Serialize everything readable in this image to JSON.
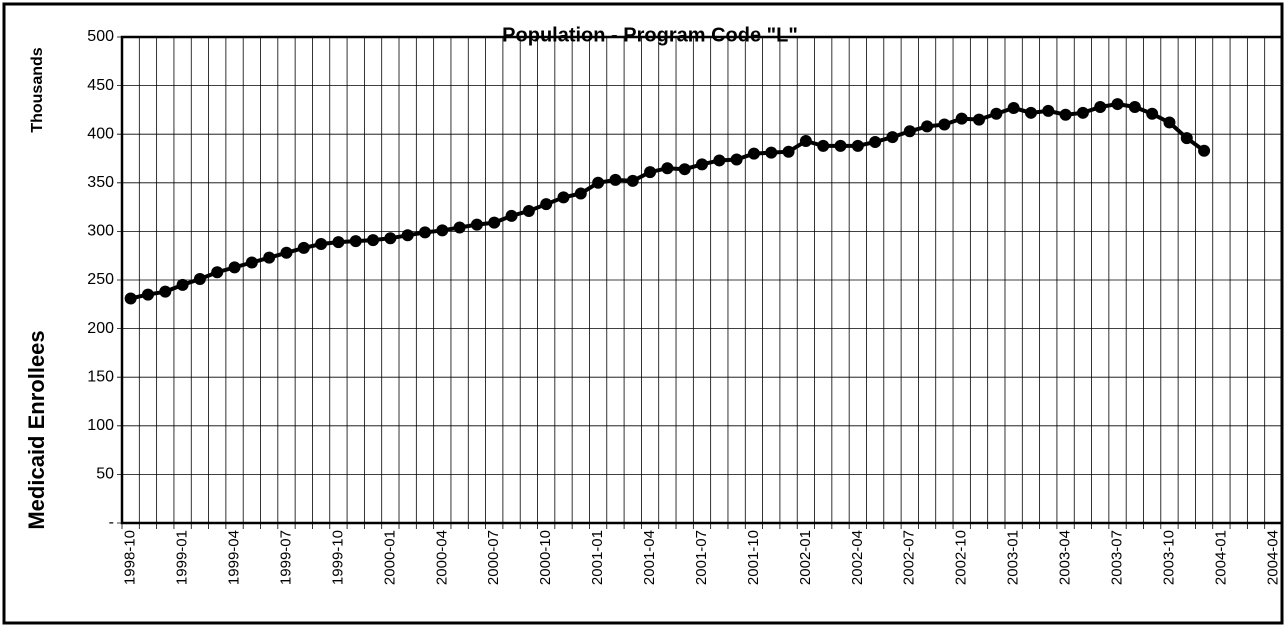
{
  "chart_data": {
    "type": "line",
    "title": "Population - Program Code \"L\"",
    "y_label_top": "Thousands",
    "y_label": "Medicaid Enrollees",
    "categories": [
      "1998-10",
      null,
      null,
      "1999-01",
      null,
      null,
      "1999-04",
      null,
      null,
      "1999-07",
      null,
      null,
      "1999-10",
      null,
      null,
      "2000-01",
      null,
      null,
      "2000-04",
      null,
      null,
      "2000-07",
      null,
      null,
      "2000-10",
      null,
      null,
      "2001-01",
      null,
      null,
      "2001-04",
      null,
      null,
      "2001-07",
      null,
      null,
      "2001-10",
      null,
      null,
      "2002-01",
      null,
      null,
      "2002-04",
      null,
      null,
      "2002-07",
      null,
      null,
      "2002-10",
      null,
      null,
      "2003-01",
      null,
      null,
      "2003-04",
      null,
      null,
      "2003-07",
      null,
      null,
      "2003-10",
      null,
      null,
      "2004-01",
      null,
      null,
      "2004-04"
    ],
    "values": [
      231,
      235,
      238,
      245,
      251,
      258,
      263,
      268,
      273,
      278,
      283,
      287,
      289,
      290,
      291,
      293,
      296,
      299,
      301,
      304,
      307,
      309,
      316,
      321,
      328,
      335,
      339,
      350,
      353,
      352,
      361,
      365,
      364,
      369,
      373,
      374,
      380,
      381,
      382,
      393,
      388,
      388,
      388,
      392,
      397,
      403,
      408,
      410,
      416,
      415,
      421,
      427,
      422,
      424,
      420,
      422,
      428,
      431,
      428,
      421,
      412,
      396,
      383,
      null,
      null,
      null,
      null
    ],
    "color": "#000000",
    "ylim": [
      0,
      500
    ],
    "yticks": [
      {
        "value": 0,
        "label": "-"
      },
      50,
      100,
      150,
      200,
      250,
      300,
      350,
      400,
      450,
      500
    ],
    "grid": true
  }
}
